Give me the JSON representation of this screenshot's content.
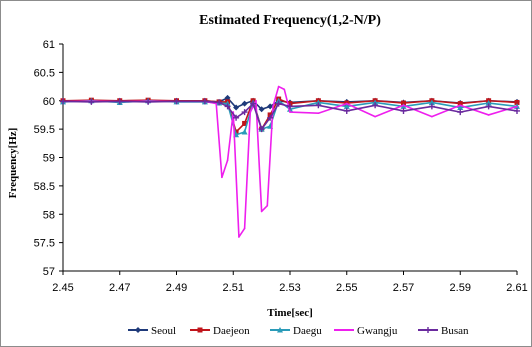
{
  "chart_data": {
    "type": "line",
    "title": "Estimated Frequency(1,2-N/P)",
    "xlabel": "Time[sec]",
    "ylabel": "Frequency[Hz]",
    "xlim": [
      2.45,
      2.61
    ],
    "ylim": [
      57,
      61
    ],
    "x_ticks": [
      "2.45",
      "2.47",
      "2.49",
      "2.51",
      "2.53",
      "2.55",
      "2.57",
      "2.59",
      "2.61"
    ],
    "x_tick_values": [
      2.45,
      2.47,
      2.49,
      2.51,
      2.53,
      2.55,
      2.57,
      2.59,
      2.61
    ],
    "y_ticks": [
      "57",
      "57.5",
      "58",
      "58.5",
      "59",
      "59.5",
      "60",
      "60.5",
      "61"
    ],
    "y_tick_values": [
      57,
      57.5,
      58,
      58.5,
      59,
      59.5,
      60,
      60.5,
      61
    ],
    "grid": false,
    "legend_position": "bottom",
    "series": [
      {
        "name": "Seoul",
        "color": "#1f3a7a",
        "marker": "diamond",
        "x": [
          2.45,
          2.46,
          2.47,
          2.48,
          2.49,
          2.5,
          2.505,
          2.508,
          2.511,
          2.514,
          2.517,
          2.52,
          2.523,
          2.526,
          2.53,
          2.54,
          2.55,
          2.56,
          2.57,
          2.58,
          2.59,
          2.6,
          2.61
        ],
        "y": [
          60.0,
          59.99,
          60.0,
          59.99,
          60.0,
          60.0,
          59.98,
          60.05,
          59.88,
          59.95,
          60.0,
          59.85,
          59.9,
          60.0,
          59.97,
          60.0,
          59.98,
          60.0,
          59.97,
          60.0,
          59.96,
          60.0,
          59.98
        ]
      },
      {
        "name": "Daejeon",
        "color": "#c0151b",
        "marker": "square",
        "x": [
          2.45,
          2.46,
          2.47,
          2.48,
          2.49,
          2.5,
          2.505,
          2.508,
          2.511,
          2.514,
          2.517,
          2.52,
          2.523,
          2.526,
          2.53,
          2.54,
          2.55,
          2.56,
          2.57,
          2.58,
          2.59,
          2.6,
          2.61
        ],
        "y": [
          60.0,
          60.01,
          60.0,
          60.01,
          60.0,
          60.0,
          59.98,
          59.98,
          59.45,
          59.6,
          60.0,
          59.5,
          59.75,
          60.03,
          59.95,
          60.0,
          59.96,
          60.0,
          59.96,
          60.0,
          59.95,
          60.0,
          59.97
        ]
      },
      {
        "name": "Daegu",
        "color": "#2a9bb8",
        "marker": "triangle",
        "x": [
          2.45,
          2.46,
          2.47,
          2.48,
          2.49,
          2.5,
          2.505,
          2.508,
          2.511,
          2.514,
          2.517,
          2.52,
          2.523,
          2.526,
          2.53,
          2.54,
          2.55,
          2.56,
          2.57,
          2.58,
          2.59,
          2.6,
          2.61
        ],
        "y": [
          59.98,
          60.0,
          59.97,
          60.0,
          59.98,
          59.98,
          59.96,
          59.95,
          59.4,
          59.45,
          59.97,
          59.5,
          59.55,
          60.0,
          59.85,
          59.97,
          59.9,
          59.97,
          59.9,
          59.97,
          59.88,
          59.96,
          59.9
        ]
      },
      {
        "name": "Gwangju",
        "color": "#ee1fee",
        "marker": "none",
        "x": [
          2.45,
          2.46,
          2.47,
          2.48,
          2.49,
          2.5,
          2.504,
          2.506,
          2.508,
          2.51,
          2.512,
          2.514,
          2.516,
          2.518,
          2.52,
          2.522,
          2.524,
          2.526,
          2.528,
          2.53,
          2.54,
          2.55,
          2.56,
          2.57,
          2.58,
          2.59,
          2.6,
          2.61
        ],
        "y": [
          59.99,
          59.99,
          59.99,
          59.99,
          59.99,
          59.99,
          59.95,
          58.65,
          58.95,
          59.8,
          57.6,
          57.75,
          59.8,
          60.0,
          58.05,
          58.15,
          59.9,
          60.25,
          60.2,
          59.8,
          59.78,
          59.95,
          59.72,
          59.92,
          59.72,
          59.92,
          59.75,
          59.9
        ]
      },
      {
        "name": "Busan",
        "color": "#6a2a9e",
        "marker": "cross",
        "x": [
          2.45,
          2.46,
          2.47,
          2.48,
          2.49,
          2.5,
          2.505,
          2.508,
          2.511,
          2.514,
          2.517,
          2.52,
          2.523,
          2.526,
          2.53,
          2.54,
          2.55,
          2.56,
          2.57,
          2.58,
          2.59,
          2.6,
          2.61
        ],
        "y": [
          59.99,
          59.98,
          59.99,
          59.98,
          59.99,
          59.99,
          59.97,
          59.9,
          59.7,
          59.8,
          59.95,
          59.5,
          59.7,
          59.95,
          59.9,
          59.92,
          59.82,
          59.92,
          59.82,
          59.9,
          59.8,
          59.9,
          59.82
        ]
      }
    ]
  }
}
